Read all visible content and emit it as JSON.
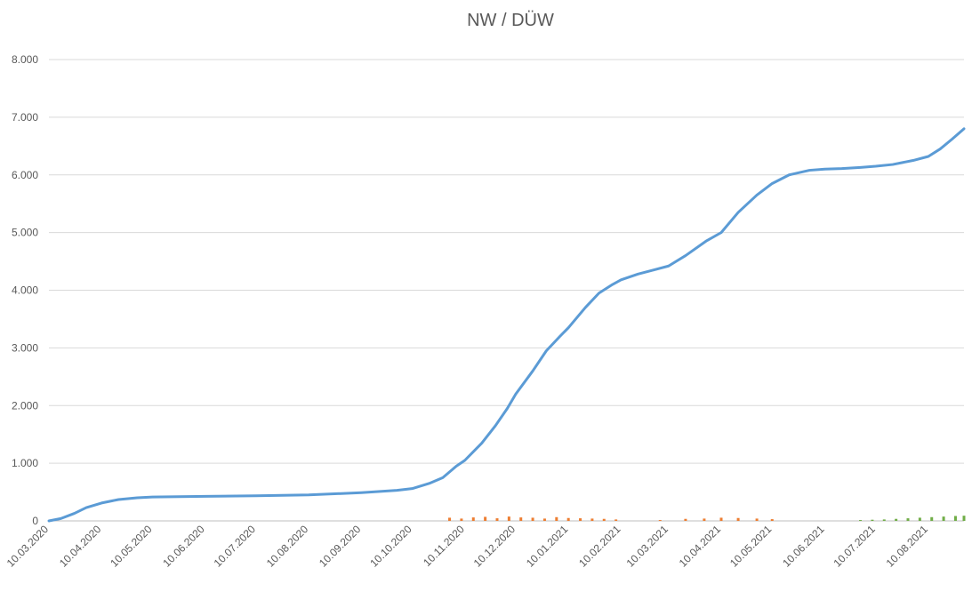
{
  "chart_data": {
    "type": "line",
    "title": "NW / DÜW",
    "xlabel": "",
    "ylabel": "",
    "ylim": [
      0,
      8000
    ],
    "y_ticks": [
      0,
      1000,
      2000,
      3000,
      4000,
      5000,
      6000,
      7000,
      8000
    ],
    "y_tick_labels": [
      "0",
      "1.000",
      "2.000",
      "3.000",
      "4.000",
      "5.000",
      "6.000",
      "7.000",
      "8.000"
    ],
    "x_range": [
      "2020-03-10",
      "2021-08-31"
    ],
    "x_ticks": [
      "2020-03-10",
      "2020-04-10",
      "2020-05-10",
      "2020-06-10",
      "2020-07-10",
      "2020-08-10",
      "2020-09-10",
      "2020-10-10",
      "2020-11-10",
      "2020-12-10",
      "2021-01-10",
      "2021-02-10",
      "2021-03-10",
      "2021-04-10",
      "2021-05-10",
      "2021-06-10",
      "2021-07-10",
      "2021-08-10"
    ],
    "x_tick_labels": [
      "10.03.2020",
      "10.04.2020",
      "10.05.2020",
      "10.06.2020",
      "10.07.2020",
      "10.08.2020",
      "10.09.2020",
      "10.10.2020",
      "10.11.2020",
      "10.12.2020",
      "10.01.2021",
      "10.02.2021",
      "10.03.2021",
      "10.04.2021",
      "10.05.2021",
      "10.06.2021",
      "10.07.2021",
      "10.08.2021"
    ],
    "grid": true,
    "legend": "none",
    "colors": {
      "cumulative": "#5b9bd5",
      "daily_orange": "#ed7d31",
      "daily_green": "#70ad47",
      "grid": "#d9d9d9"
    },
    "series": [
      {
        "type": "line",
        "points": [
          [
            "2020-03-10",
            0
          ],
          [
            "2020-03-17",
            40
          ],
          [
            "2020-03-25",
            130
          ],
          [
            "2020-04-01",
            230
          ],
          [
            "2020-04-10",
            310
          ],
          [
            "2020-04-20",
            370
          ],
          [
            "2020-05-01",
            400
          ],
          [
            "2020-05-10",
            415
          ],
          [
            "2020-06-10",
            425
          ],
          [
            "2020-07-10",
            435
          ],
          [
            "2020-08-10",
            450
          ],
          [
            "2020-09-10",
            490
          ],
          [
            "2020-10-01",
            530
          ],
          [
            "2020-10-10",
            560
          ],
          [
            "2020-10-20",
            650
          ],
          [
            "2020-10-28",
            750
          ],
          [
            "2020-11-05",
            950
          ],
          [
            "2020-11-10",
            1050
          ],
          [
            "2020-11-20",
            1350
          ],
          [
            "2020-11-28",
            1650
          ],
          [
            "2020-12-05",
            1950
          ],
          [
            "2020-12-10",
            2200
          ],
          [
            "2020-12-20",
            2600
          ],
          [
            "2020-12-28",
            2950
          ],
          [
            "2021-01-05",
            3200
          ],
          [
            "2021-01-10",
            3350
          ],
          [
            "2021-01-20",
            3700
          ],
          [
            "2021-01-28",
            3950
          ],
          [
            "2021-02-05",
            4100
          ],
          [
            "2021-02-10",
            4180
          ],
          [
            "2021-02-20",
            4280
          ],
          [
            "2021-03-01",
            4350
          ],
          [
            "2021-03-10",
            4420
          ],
          [
            "2021-03-20",
            4600
          ],
          [
            "2021-04-01",
            4850
          ],
          [
            "2021-04-10",
            5000
          ],
          [
            "2021-04-20",
            5350
          ],
          [
            "2021-05-01",
            5650
          ],
          [
            "2021-05-10",
            5850
          ],
          [
            "2021-05-20",
            6000
          ],
          [
            "2021-06-01",
            6080
          ],
          [
            "2021-06-10",
            6100
          ],
          [
            "2021-06-20",
            6110
          ],
          [
            "2021-07-01",
            6130
          ],
          [
            "2021-07-10",
            6150
          ],
          [
            "2021-07-20",
            6180
          ],
          [
            "2021-08-01",
            6250
          ],
          [
            "2021-08-10",
            6320
          ],
          [
            "2021-08-17",
            6450
          ],
          [
            "2021-08-24",
            6620
          ],
          [
            "2021-08-31",
            6800
          ]
        ]
      },
      {
        "type": "bar",
        "points": [
          [
            "2020-11-01",
            55
          ],
          [
            "2020-11-08",
            40
          ],
          [
            "2020-11-15",
            60
          ],
          [
            "2020-11-22",
            70
          ],
          [
            "2020-11-29",
            45
          ],
          [
            "2020-12-06",
            75
          ],
          [
            "2020-12-13",
            60
          ],
          [
            "2020-12-20",
            55
          ],
          [
            "2020-12-27",
            40
          ],
          [
            "2021-01-03",
            65
          ],
          [
            "2021-01-10",
            50
          ],
          [
            "2021-01-17",
            45
          ],
          [
            "2021-01-24",
            40
          ],
          [
            "2021-01-31",
            35
          ],
          [
            "2021-02-07",
            25
          ],
          [
            "2021-03-05",
            15
          ],
          [
            "2021-03-20",
            35
          ],
          [
            "2021-03-31",
            40
          ],
          [
            "2021-04-10",
            55
          ],
          [
            "2021-04-20",
            50
          ],
          [
            "2021-05-01",
            40
          ],
          [
            "2021-05-10",
            30
          ]
        ]
      },
      {
        "type": "bar",
        "points": [
          [
            "2021-07-01",
            15
          ],
          [
            "2021-07-08",
            20
          ],
          [
            "2021-07-15",
            25
          ],
          [
            "2021-07-22",
            35
          ],
          [
            "2021-07-29",
            45
          ],
          [
            "2021-08-05",
            55
          ],
          [
            "2021-08-12",
            65
          ],
          [
            "2021-08-19",
            75
          ],
          [
            "2021-08-26",
            85
          ],
          [
            "2021-08-31",
            90
          ]
        ]
      }
    ]
  }
}
